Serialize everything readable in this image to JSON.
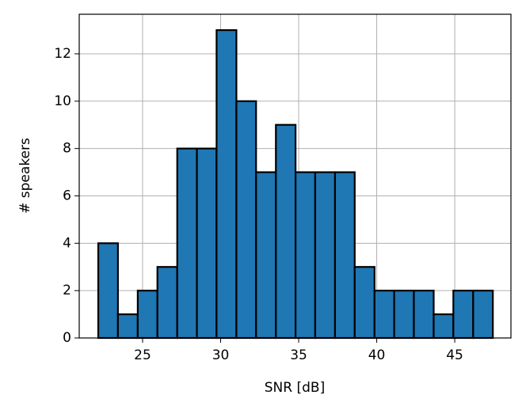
{
  "chart_data": {
    "type": "histogram",
    "xlabel": "SNR [dB]",
    "ylabel": "# speakers",
    "bins": [
      22.16,
      23.42,
      24.69,
      25.95,
      27.22,
      28.48,
      29.74,
      31.01,
      32.27,
      33.54,
      34.8,
      36.06,
      37.33,
      38.59,
      39.86,
      41.12,
      42.38,
      43.65,
      44.91,
      46.18,
      47.44
    ],
    "values": [
      4,
      1,
      2,
      3,
      8,
      8,
      13,
      10,
      7,
      9,
      7,
      7,
      7,
      3,
      2,
      2,
      2,
      1,
      2,
      2
    ],
    "color": "#1f77b4",
    "edgecolor": "#000000",
    "xlim": [
      20.94,
      48.6
    ],
    "xticks": [
      25,
      30,
      35,
      40,
      45
    ],
    "ylim": [
      0,
      13.67
    ],
    "yticks": [
      0,
      2,
      4,
      6,
      8,
      10,
      12
    ],
    "grid": true
  }
}
